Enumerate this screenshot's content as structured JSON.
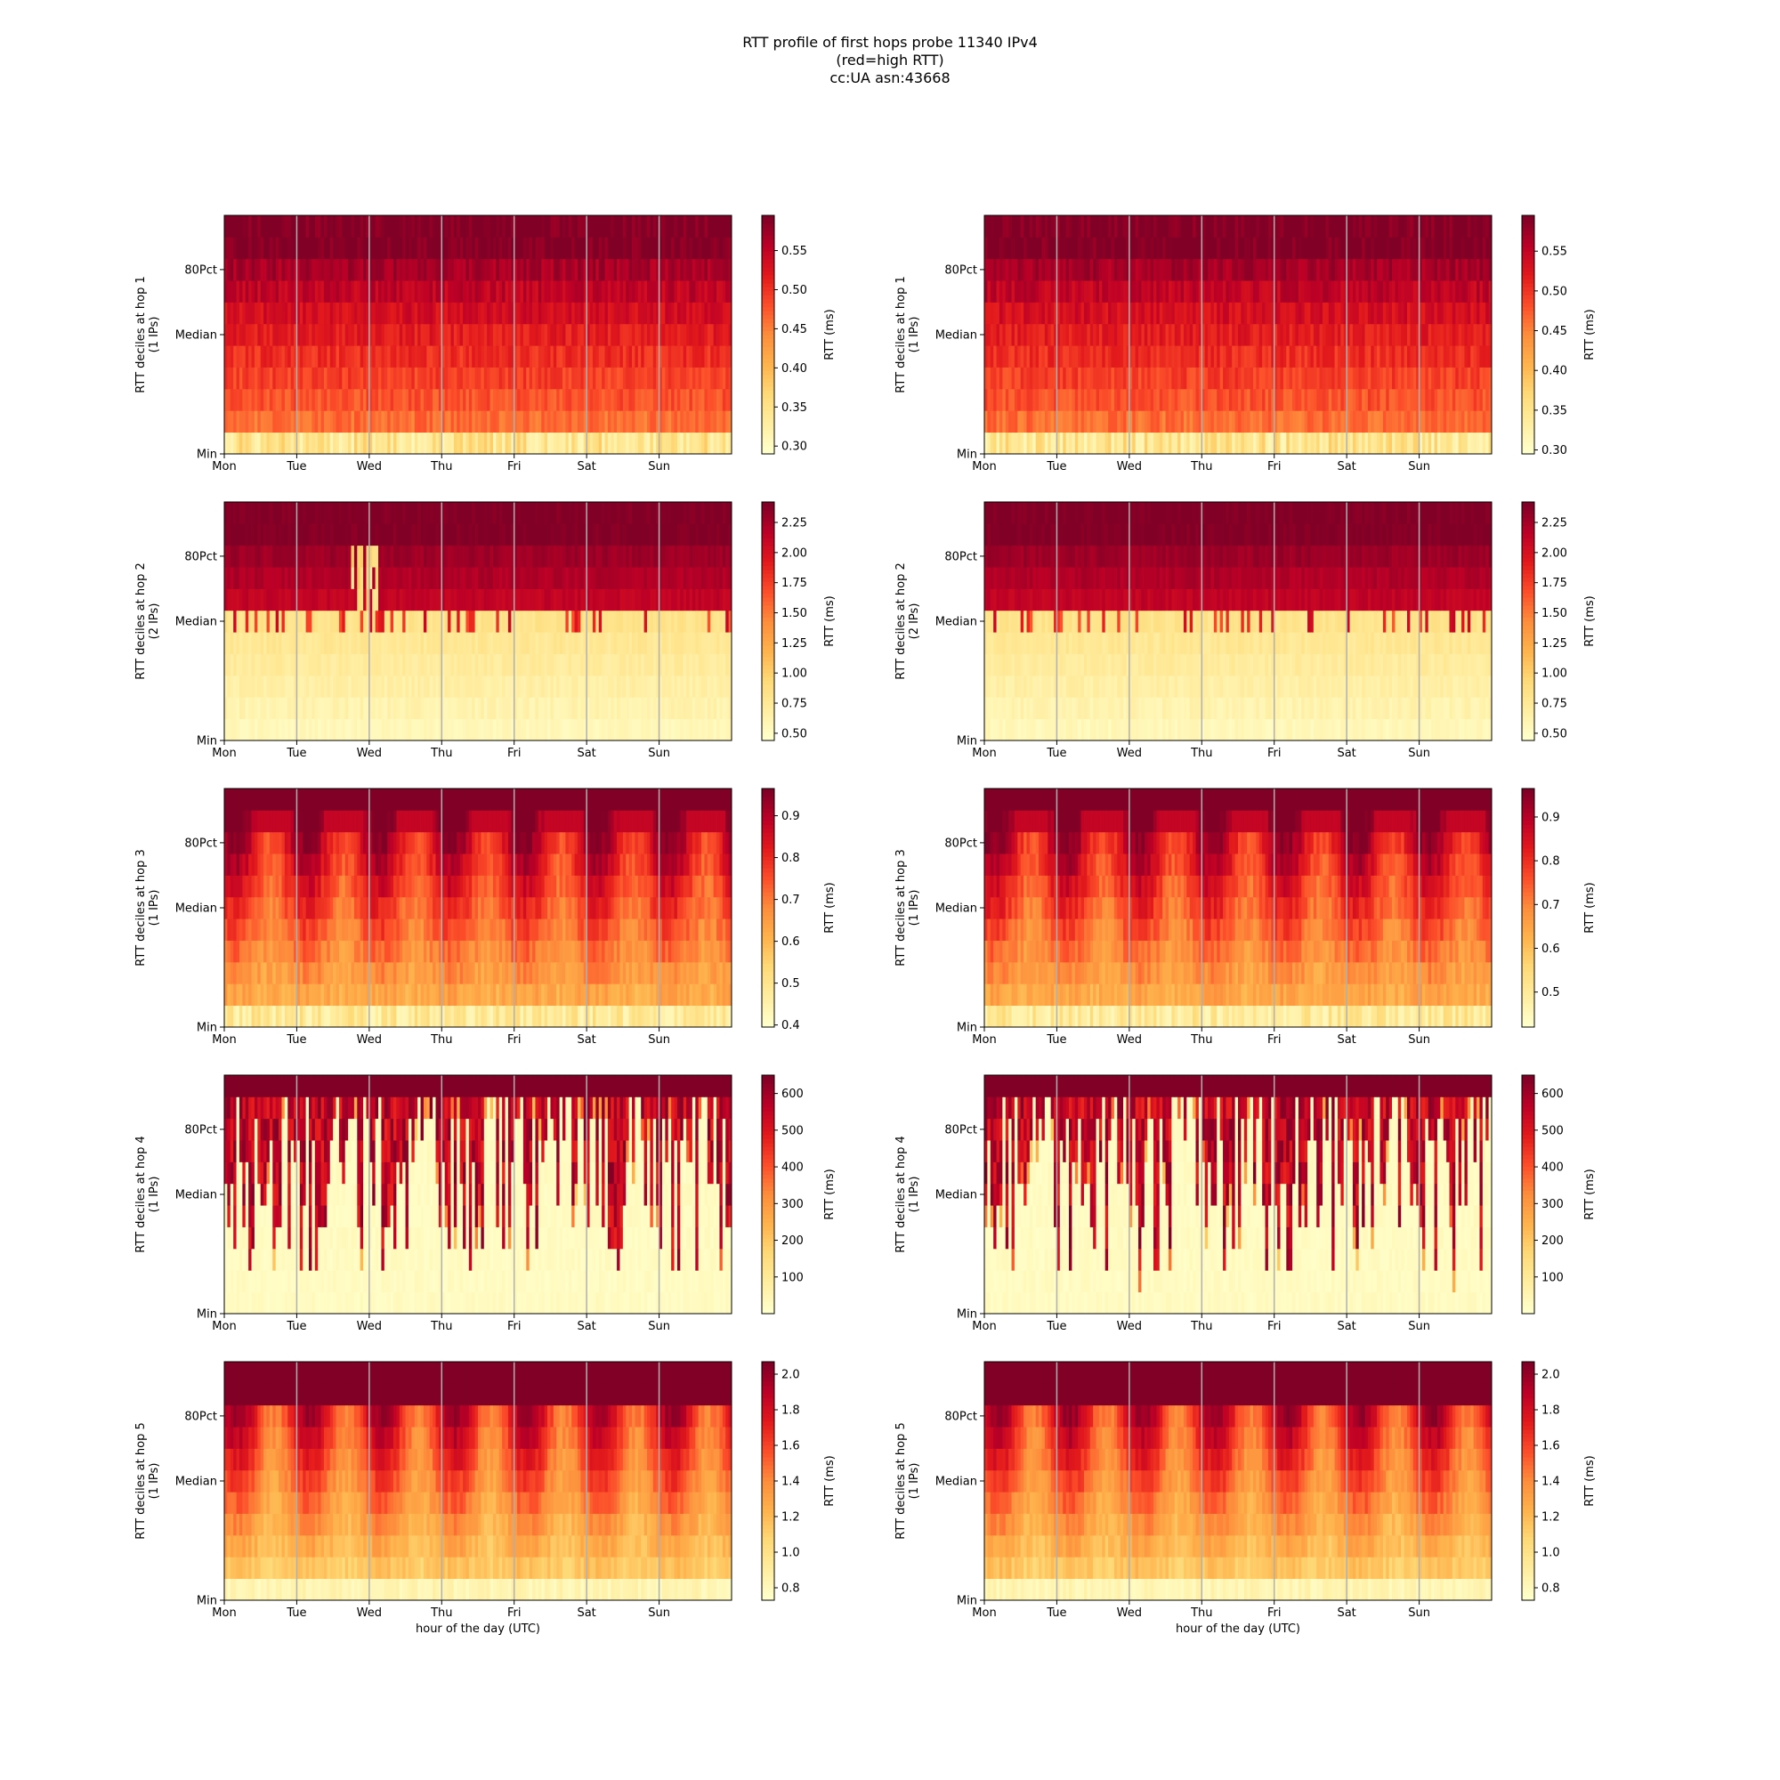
{
  "figure": {
    "title_lines": [
      "RTT profile of first hops probe 11340 IPv4",
      "(red=high RTT)",
      "cc:UA asn:43668"
    ]
  },
  "colormap": [
    "#ffffcc",
    "#ffeda0",
    "#fed976",
    "#feb24c",
    "#fd8d3c",
    "#fc4e2a",
    "#e31a1c",
    "#bd0026",
    "#800026"
  ],
  "chart_data": [
    {
      "type": "heatmap",
      "hop": 1,
      "column": "left",
      "ylabel": "RTT deciles at hop 1",
      "ylabel2": "(1 IPs)",
      "yticks": [
        "Min",
        "Median",
        "80Pct"
      ],
      "xticks": [
        "Mon",
        "Tue",
        "Wed",
        "Thu",
        "Fri",
        "Sat",
        "Sun"
      ],
      "colorbar": {
        "label": "RTT (ms)",
        "ticks": [
          "0.30",
          "0.35",
          "0.40",
          "0.45",
          "0.50",
          "0.55"
        ],
        "range": [
          0.29,
          0.595
        ]
      },
      "pattern": "stable"
    },
    {
      "type": "heatmap",
      "hop": 1,
      "column": "right",
      "ylabel": "RTT deciles at hop 1",
      "ylabel2": "(1 IPs)",
      "yticks": [
        "Min",
        "Median",
        "80Pct"
      ],
      "xticks": [
        "Mon",
        "Tue",
        "Wed",
        "Thu",
        "Fri",
        "Sat",
        "Sun"
      ],
      "colorbar": {
        "label": "RTT (ms)",
        "ticks": [
          "0.30",
          "0.35",
          "0.40",
          "0.45",
          "0.50",
          "0.55"
        ],
        "range": [
          0.295,
          0.595
        ]
      },
      "pattern": "stable"
    },
    {
      "type": "heatmap",
      "hop": 2,
      "column": "left",
      "ylabel": "RTT deciles at hop 2",
      "ylabel2": "(2 IPs)",
      "yticks": [
        "Min",
        "Median",
        "80Pct"
      ],
      "xticks": [
        "Mon",
        "Tue",
        "Wed",
        "Thu",
        "Fri",
        "Sat",
        "Sun"
      ],
      "colorbar": {
        "label": "RTT (ms)",
        "ticks": [
          "0.50",
          "0.75",
          "1.00",
          "1.25",
          "1.50",
          "1.75",
          "2.00",
          "2.25"
        ],
        "range": [
          0.44,
          2.42
        ]
      },
      "pattern": "twolevel"
    },
    {
      "type": "heatmap",
      "hop": 2,
      "column": "right",
      "ylabel": "RTT deciles at hop 2",
      "ylabel2": "(2 IPs)",
      "yticks": [
        "Min",
        "Median",
        "80Pct"
      ],
      "xticks": [
        "Mon",
        "Tue",
        "Wed",
        "Thu",
        "Fri",
        "Sat",
        "Sun"
      ],
      "colorbar": {
        "label": "RTT (ms)",
        "ticks": [
          "0.50",
          "0.75",
          "1.00",
          "1.25",
          "1.50",
          "1.75",
          "2.00",
          "2.25"
        ],
        "range": [
          0.44,
          2.42
        ]
      },
      "pattern": "twolevel"
    },
    {
      "type": "heatmap",
      "hop": 3,
      "column": "left",
      "ylabel": "RTT deciles at hop 3",
      "ylabel2": "(1 IPs)",
      "yticks": [
        "Min",
        "Median",
        "80Pct"
      ],
      "xticks": [
        "Mon",
        "Tue",
        "Wed",
        "Thu",
        "Fri",
        "Sat",
        "Sun"
      ],
      "colorbar": {
        "label": "RTT (ms)",
        "ticks": [
          "0.4",
          "0.5",
          "0.6",
          "0.7",
          "0.8",
          "0.9"
        ],
        "range": [
          0.395,
          0.965
        ]
      },
      "pattern": "diurnal"
    },
    {
      "type": "heatmap",
      "hop": 3,
      "column": "right",
      "ylabel": "RTT deciles at hop 3",
      "ylabel2": "(1 IPs)",
      "yticks": [
        "Min",
        "Median",
        "80Pct"
      ],
      "xticks": [
        "Mon",
        "Tue",
        "Wed",
        "Thu",
        "Fri",
        "Sat",
        "Sun"
      ],
      "colorbar": {
        "label": "RTT (ms)",
        "ticks": [
          "0.5",
          "0.6",
          "0.7",
          "0.8",
          "0.9"
        ],
        "range": [
          0.42,
          0.965
        ]
      },
      "pattern": "diurnal"
    },
    {
      "type": "heatmap",
      "hop": 4,
      "column": "left",
      "ylabel": "RTT deciles at hop 4",
      "ylabel2": "(1 IPs)",
      "yticks": [
        "Min",
        "Median",
        "80Pct"
      ],
      "xticks": [
        "Mon",
        "Tue",
        "Wed",
        "Thu",
        "Fri",
        "Sat",
        "Sun"
      ],
      "colorbar": {
        "label": "RTT (ms)",
        "ticks": [
          "100",
          "200",
          "300",
          "400",
          "500",
          "600"
        ],
        "range": [
          0,
          650
        ]
      },
      "pattern": "spiky"
    },
    {
      "type": "heatmap",
      "hop": 4,
      "column": "right",
      "ylabel": "RTT deciles at hop 4",
      "ylabel2": "(1 IPs)",
      "yticks": [
        "Min",
        "Median",
        "80Pct"
      ],
      "xticks": [
        "Mon",
        "Tue",
        "Wed",
        "Thu",
        "Fri",
        "Sat",
        "Sun"
      ],
      "colorbar": {
        "label": "RTT (ms)",
        "ticks": [
          "100",
          "200",
          "300",
          "400",
          "500",
          "600"
        ],
        "range": [
          0,
          650
        ]
      },
      "pattern": "spiky"
    },
    {
      "type": "heatmap",
      "hop": 5,
      "column": "left",
      "ylabel": "RTT deciles at hop 5",
      "ylabel2": "(1 IPs)",
      "xlabel": "hour of the day (UTC)",
      "yticks": [
        "Min",
        "Median",
        "80Pct"
      ],
      "xticks": [
        "Mon",
        "Tue",
        "Wed",
        "Thu",
        "Fri",
        "Sat",
        "Sun"
      ],
      "colorbar": {
        "label": "RTT (ms)",
        "ticks": [
          "0.8",
          "1.0",
          "1.2",
          "1.4",
          "1.6",
          "1.8",
          "2.0"
        ],
        "range": [
          0.73,
          2.07
        ]
      },
      "pattern": "diurnal2"
    },
    {
      "type": "heatmap",
      "hop": 5,
      "column": "right",
      "ylabel": "RTT deciles at hop 5",
      "ylabel2": "(1 IPs)",
      "xlabel": "hour of the day (UTC)",
      "yticks": [
        "Min",
        "Median",
        "80Pct"
      ],
      "xticks": [
        "Mon",
        "Tue",
        "Wed",
        "Thu",
        "Fri",
        "Sat",
        "Sun"
      ],
      "colorbar": {
        "label": "RTT (ms)",
        "ticks": [
          "0.8",
          "1.0",
          "1.2",
          "1.4",
          "1.6",
          "1.8",
          "2.0"
        ],
        "range": [
          0.73,
          2.07
        ]
      },
      "pattern": "diurnal2"
    }
  ]
}
